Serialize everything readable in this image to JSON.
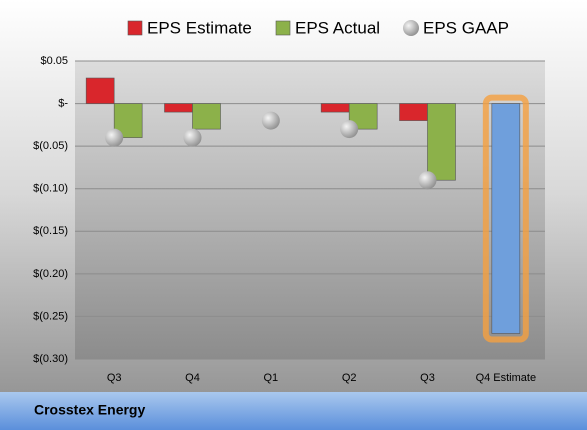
{
  "chart_data": {
    "type": "bar",
    "categories": [
      "Q3",
      "Q4",
      "Q1",
      "Q2",
      "Q3",
      "Q4 Estimate"
    ],
    "series": [
      {
        "name": "EPS Estimate",
        "color": "#d9262c",
        "values": [
          0.03,
          -0.01,
          null,
          -0.01,
          -0.02,
          -0.27
        ],
        "highlight": {
          "index": 5,
          "color": "#6f9fdc"
        }
      },
      {
        "name": "EPS Actual",
        "color": "#8cb14a",
        "values": [
          -0.04,
          -0.03,
          null,
          -0.03,
          -0.09,
          null
        ]
      },
      {
        "name": "EPS GAAP",
        "color": "#b8b8b8",
        "type": "scatter",
        "values": [
          -0.04,
          -0.04,
          -0.02,
          -0.03,
          -0.09,
          null
        ]
      }
    ],
    "ylim": [
      -0.3,
      0.05
    ],
    "yticks": [
      {
        "value": 0.05,
        "label": "$0.05"
      },
      {
        "value": 0,
        "label": "$-"
      },
      {
        "value": -0.05,
        "label": "$(0.05)"
      },
      {
        "value": -0.1,
        "label": "$(0.10)"
      },
      {
        "value": -0.15,
        "label": "$(0.15)"
      },
      {
        "value": -0.2,
        "label": "$(0.20)"
      },
      {
        "value": -0.25,
        "label": "$(0.25)"
      },
      {
        "value": -0.3,
        "label": "$(0.30)"
      }
    ],
    "grid": true,
    "footer": "Crosstex Energy"
  }
}
